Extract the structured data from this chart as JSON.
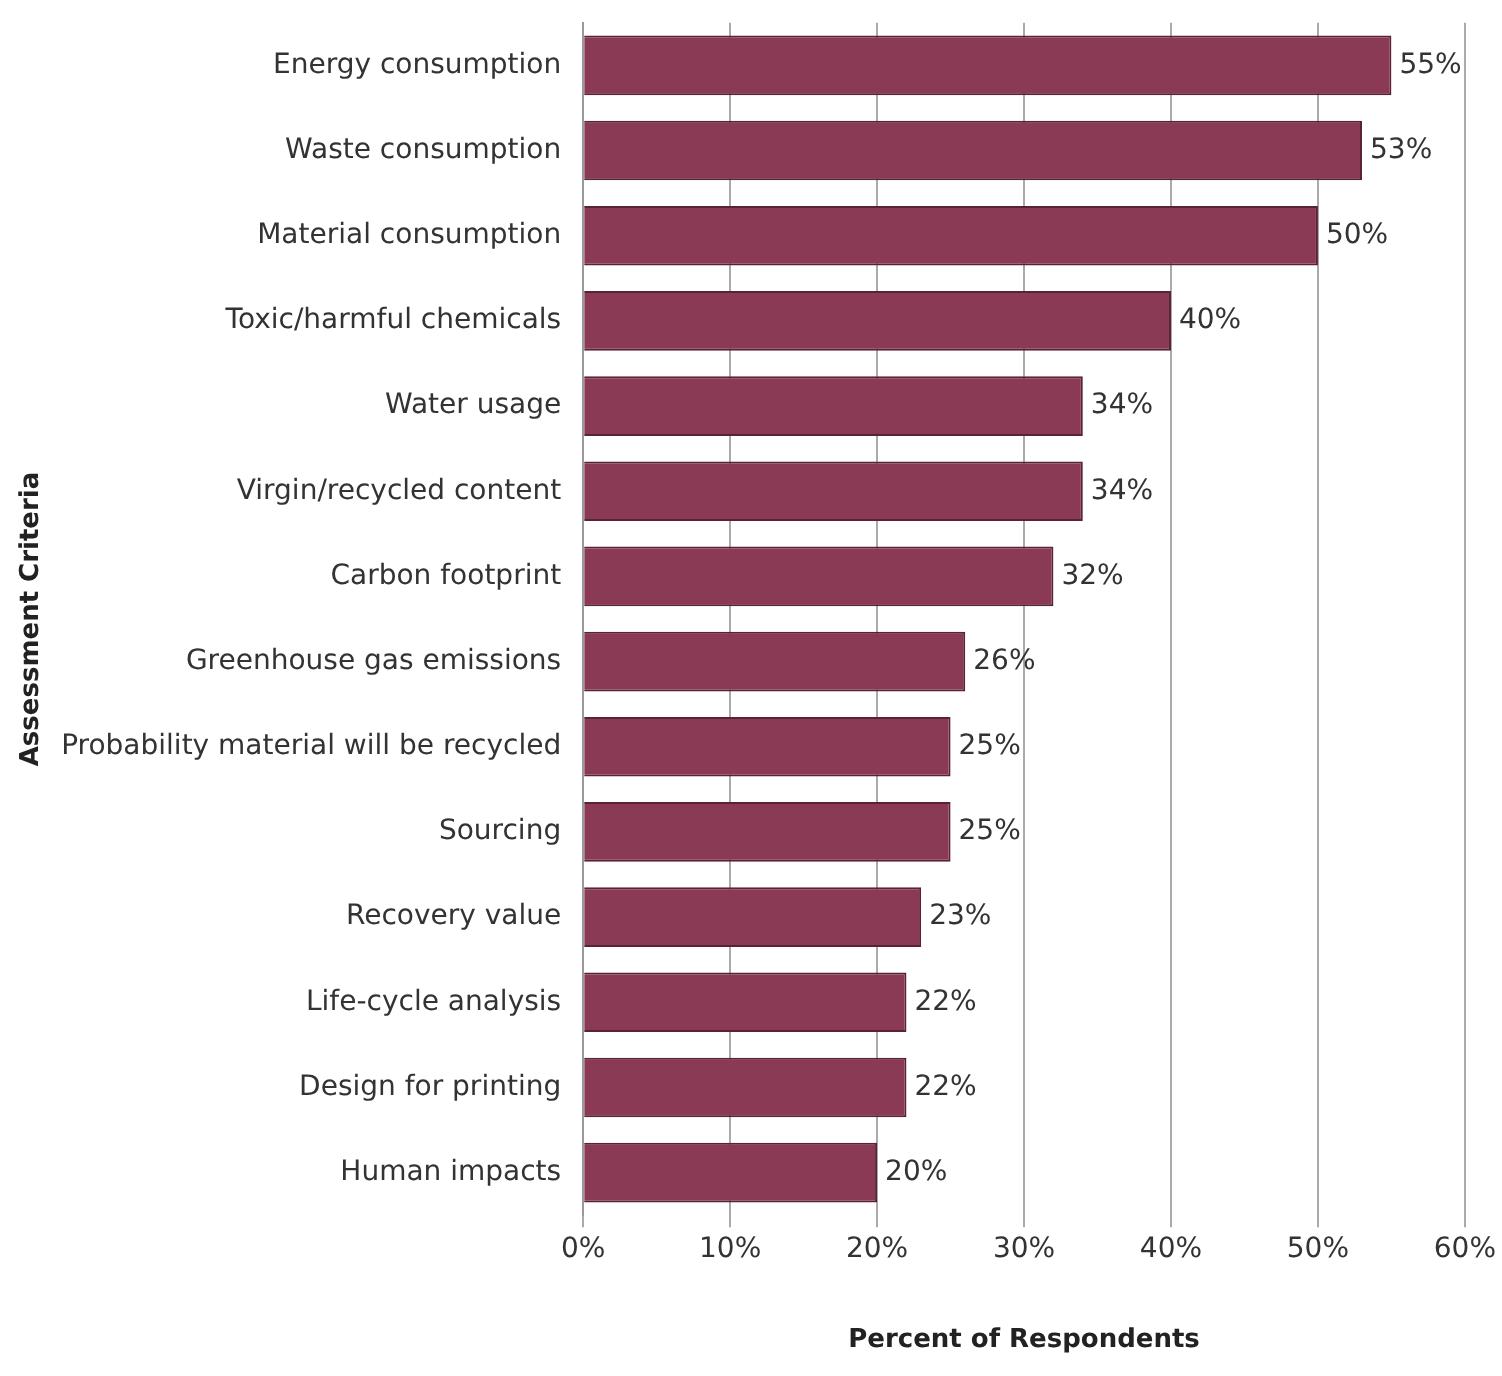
{
  "chart_data": {
    "type": "bar",
    "orientation": "horizontal",
    "xlabel": "Percent of Respondents",
    "ylabel": "Assessment Criteria",
    "categories": [
      "Energy consumption",
      "Waste consumption",
      "Material consumption",
      "Toxic/harmful chemicals",
      "Water usage",
      "Virgin/recycled content",
      "Carbon footprint",
      "Greenhouse gas emissions",
      "Probability material will be recycled",
      "Sourcing",
      "Recovery value",
      "Life-cycle analysis",
      "Design for printing",
      "Human impacts"
    ],
    "values": [
      55,
      53,
      50,
      40,
      34,
      34,
      32,
      26,
      25,
      25,
      23,
      22,
      22,
      20
    ],
    "value_labels": [
      "55%",
      "53%",
      "50%",
      "40%",
      "34%",
      "34%",
      "32%",
      "26%",
      "25%",
      "25%",
      "23%",
      "22%",
      "22%",
      "20%"
    ],
    "color": "#8b3a55",
    "xlim": [
      0,
      60
    ],
    "xticks": [
      {
        "value": 0,
        "label": "0%"
      },
      {
        "value": 10,
        "label": "10%"
      },
      {
        "value": 20,
        "label": "20%"
      },
      {
        "value": 30,
        "label": "30%"
      },
      {
        "value": 40,
        "label": "40%"
      },
      {
        "value": 50,
        "label": "50%"
      },
      {
        "value": 60,
        "label": "60%"
      }
    ],
    "grid": "x",
    "legend": false
  }
}
